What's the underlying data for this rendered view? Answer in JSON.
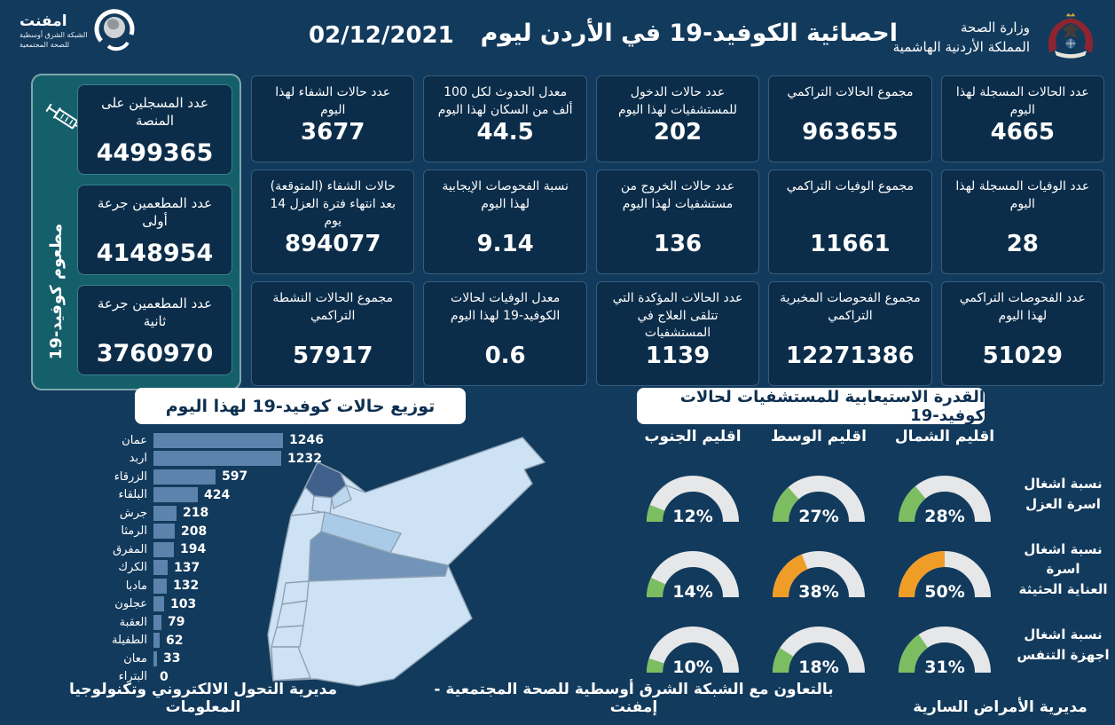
{
  "header": {
    "title": "احصائية الكوفيد-19 في الأردن ليوم",
    "date": "02/12/2021",
    "ministry": {
      "name": "وزارة الصحة",
      "country": "المملكة الأردنية الهاشمية"
    },
    "emphnet": {
      "name": "امفنت",
      "line1": "الشبكة الشرق أوسطية",
      "line2": "للصحة المجتمعية"
    }
  },
  "vaccination": {
    "vertical_label": "مطعوم كوفيد-19",
    "cards": [
      {
        "label": "عدد المسجلين على المنصة",
        "value": "4499365"
      },
      {
        "label": "عدد المطعمين جرعة أولى",
        "value": "4148954"
      },
      {
        "label": "عدد المطعمين جرعة ثانية",
        "value": "3760970"
      }
    ]
  },
  "stat_cards": [
    {
      "label": "عدد الحالات المسجلة لهذا اليوم",
      "value": "4665"
    },
    {
      "label": "مجموع الحالات التراكمي",
      "value": "963655"
    },
    {
      "label": "عدد حالات الدخول للمستشفيات لهذا اليوم",
      "value": "202"
    },
    {
      "label": "معدل الحدوث لكل 100 ألف من السكان لهذا اليوم",
      "value": "44.5"
    },
    {
      "label": "عدد حالات الشفاء لهذا اليوم",
      "value": "3677"
    },
    {
      "label": "عدد الوفيات المسجلة لهذا اليوم",
      "value": "28"
    },
    {
      "label": "مجموع الوفيات التراكمي",
      "value": "11661"
    },
    {
      "label": "عدد حالات الخروج من مستشفيات لهذا اليوم",
      "value": "136"
    },
    {
      "label": "نسبة الفحوصات الإيجابية لهذا اليوم",
      "value": "9.14"
    },
    {
      "label": "حالات الشفاء (المتوقعة) بعد انتهاء فترة العزل 14 يوم",
      "value": "894077"
    },
    {
      "label": "عدد الفحوصات التراكمي لهذا اليوم",
      "value": "51029"
    },
    {
      "label": "مجموع الفحوصات المخبرية التراكمي",
      "value": "12271386"
    },
    {
      "label": "عدد الحالات المؤكدة التي تتلقى العلاج في المستشفيات",
      "value": "1139"
    },
    {
      "label": "معدل الوفيات لحالات الكوفيد-19 لهذا اليوم",
      "value": "0.6"
    },
    {
      "label": "مجموع الحالات النشطة التراكمي",
      "value": "57917"
    }
  ],
  "chart_data": [
    {
      "type": "bar",
      "orientation": "horizontal",
      "title": "توزيع حالات كوفيد-19 لهذا اليوم",
      "categories": [
        "عمان",
        "اربد",
        "الزرقاء",
        "البلقاء",
        "جرش",
        "الرمثا",
        "المفرق",
        "الكرك",
        "مادبا",
        "عجلون",
        "العقبة",
        "الطفيلة",
        "معان",
        "البتراء"
      ],
      "values": [
        1246,
        1232,
        597,
        424,
        218,
        208,
        194,
        137,
        132,
        103,
        79,
        62,
        33,
        0
      ],
      "xlim": [
        0,
        1246
      ],
      "bar_color": "#5b83ab",
      "value_labels": true
    },
    {
      "type": "gauge-grid",
      "title": "القدرة الاستيعابية للمستشفيات لحالات كوفيد-19",
      "columns": [
        "اقليم الجنوب",
        "اقليم الوسط",
        "اقليم الشمال"
      ],
      "rows": [
        {
          "label": "نسبة اشغال\nاسرة العزل",
          "values": [
            12,
            27,
            28
          ],
          "colors": [
            "#7cbd62",
            "#7cbd62",
            "#7cbd62"
          ]
        },
        {
          "label": "نسبة اشغال اسرة\nالعناية الحثيثة",
          "values": [
            14,
            38,
            50
          ],
          "colors": [
            "#7cbd62",
            "#f09d28",
            "#f09d28"
          ]
        },
        {
          "label": "نسبة اشغال\nاجهزة التنفس",
          "values": [
            10,
            18,
            31
          ],
          "colors": [
            "#7cbd62",
            "#7cbd62",
            "#7cbd62"
          ]
        }
      ],
      "unit": "%",
      "range": [
        0,
        100
      ],
      "track_color": "#e6e7e8"
    }
  ],
  "footer": {
    "left": "مديرية التحول الالكتروني وتكنولوجيا المعلومات",
    "center": "بالتعاون مع الشبكة الشرق أوسطية للصحة المجتمعية - إمفنت",
    "right": "مديرية الأمراض السارية"
  }
}
